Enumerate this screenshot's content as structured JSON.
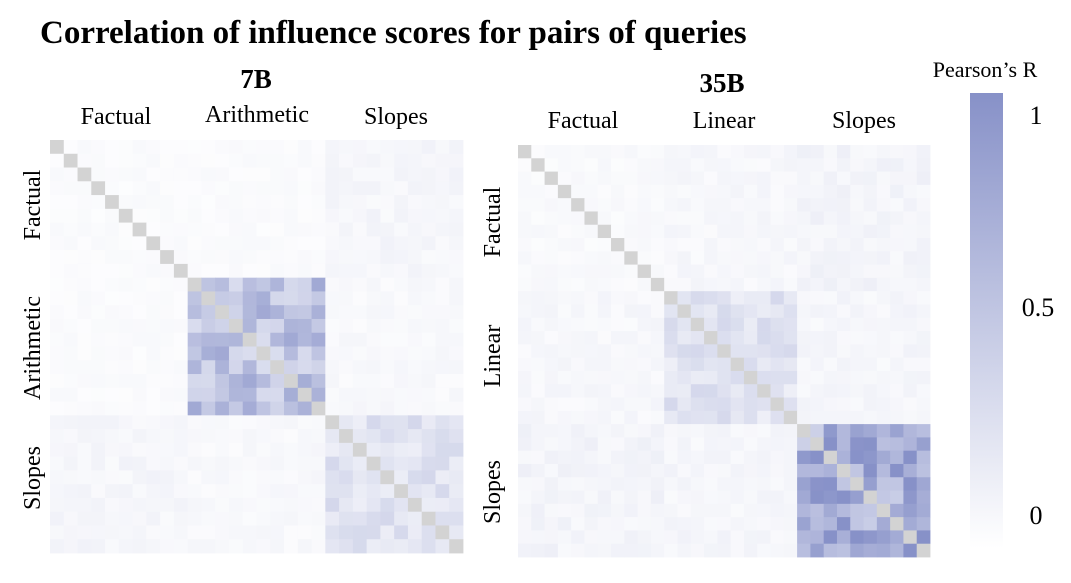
{
  "title": "Correlation of influence scores for pairs of queries",
  "colorbar": {
    "label": "Pearson’s R",
    "ticks": [
      "1",
      "0.5",
      "0"
    ],
    "tick_values": [
      1,
      0.5,
      0
    ],
    "low_color": "#ffffff",
    "high_color": "#8791c8",
    "diagonal_color": "#d3d3d3"
  },
  "chart_data": [
    {
      "type": "heatmap",
      "title": "7B",
      "group_labels": [
        "Factual",
        "Arithmetic",
        "Slopes"
      ],
      "groups": [
        {
          "name": "Factual",
          "size": 10,
          "within": 0.05
        },
        {
          "name": "Arithmetic",
          "size": 10,
          "within": 0.55
        },
        {
          "name": "Slopes",
          "size": 10,
          "within": 0.25
        }
      ],
      "between": [
        [
          0.04,
          0.04,
          0.08
        ],
        [
          0.04,
          0.55,
          0.06
        ],
        [
          0.08,
          0.06,
          0.25
        ]
      ],
      "diagonal": 1,
      "vrange": [
        0,
        1
      ]
    },
    {
      "type": "heatmap",
      "title": "35B",
      "group_labels": [
        "Factual",
        "Linear",
        "Slopes"
      ],
      "groups": [
        {
          "name": "Factual",
          "size": 11,
          "within": 0.05
        },
        {
          "name": "Linear",
          "size": 10,
          "within": 0.25
        },
        {
          "name": "Slopes",
          "size": 10,
          "within": 0.75
        }
      ],
      "between": [
        [
          0.05,
          0.07,
          0.1
        ],
        [
          0.07,
          0.25,
          0.08
        ],
        [
          0.1,
          0.08,
          0.75
        ]
      ],
      "diagonal": 1,
      "vrange": [
        0,
        1
      ]
    }
  ]
}
